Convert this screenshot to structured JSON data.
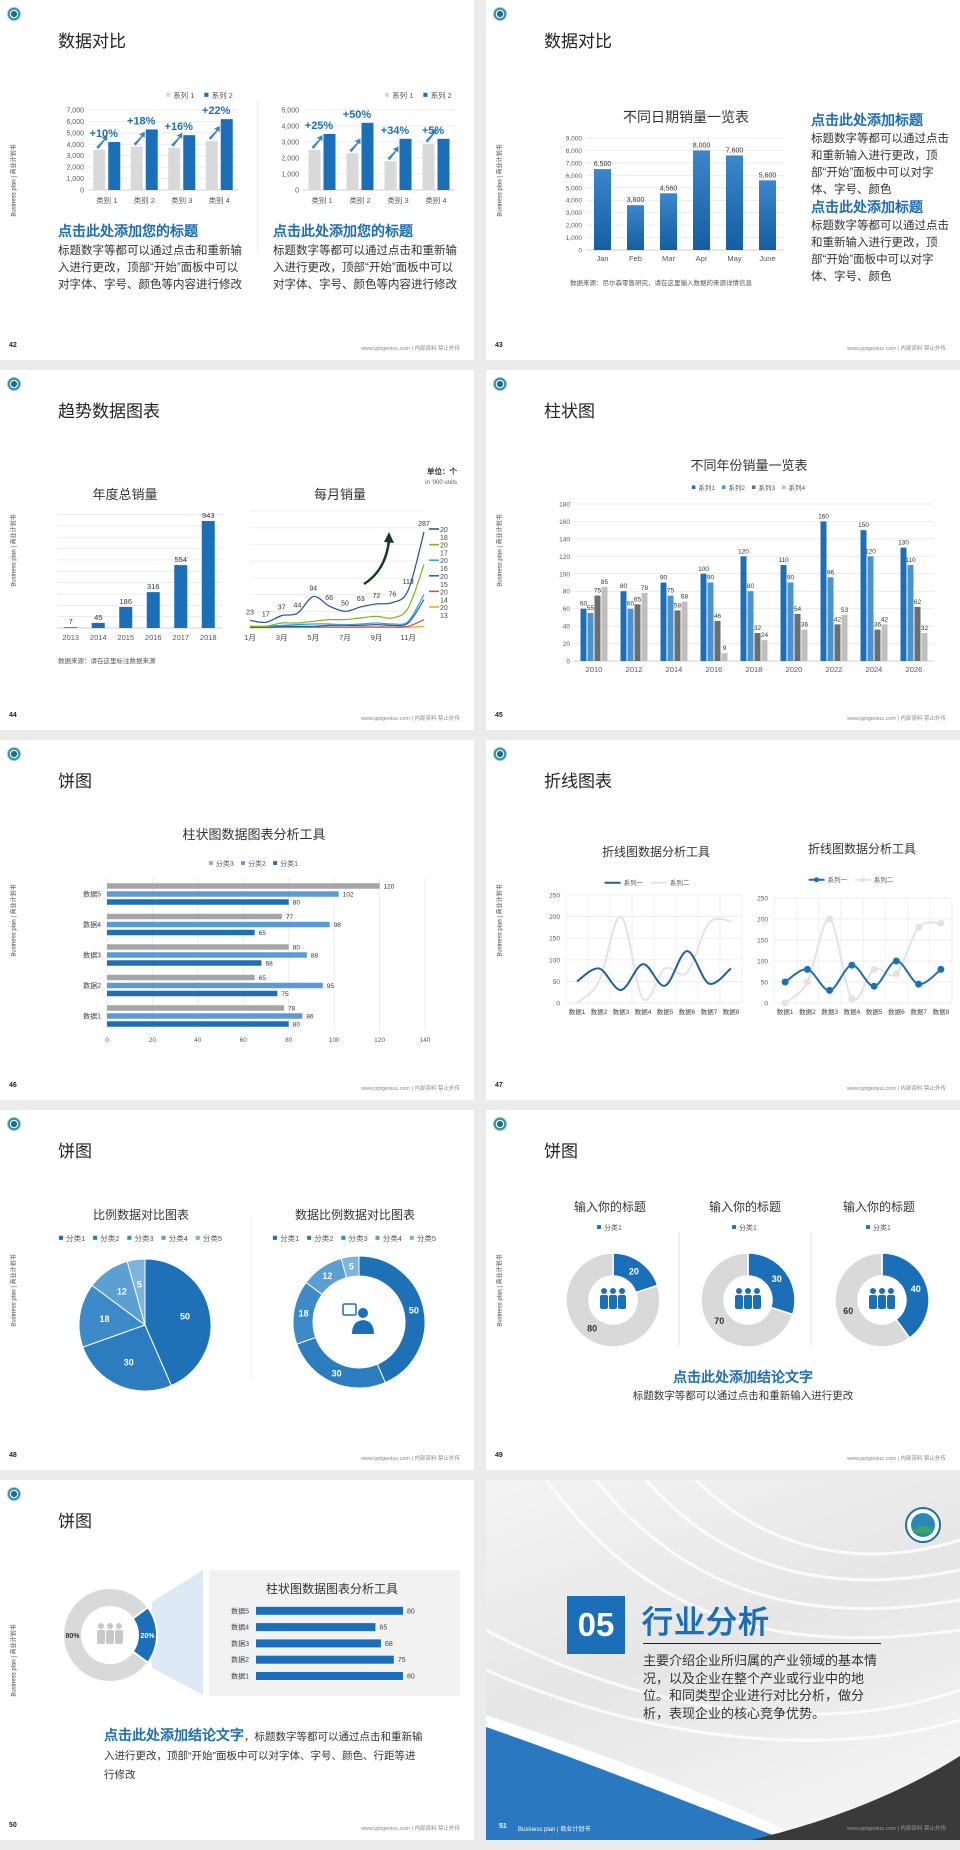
{
  "common": {
    "side_text": "Business plan | 商业计划书",
    "footer": "www.pptgenius.com | 内部资料 禁止外传"
  },
  "colors": {
    "brand_blue": "#1b6fb8",
    "heading_blue": "#1d6db5",
    "light_gray": "#d9d9d9",
    "page_bg": "#ebebeb"
  },
  "slides": {
    "s42": {
      "page": "42",
      "title": "数据对比",
      "blocks": [
        {
          "heading": "点击此处添加您的标题",
          "body": "标题数字等都可以通过点击和重新输入进行更改，顶部“开始”面板中可以对字体、字号、颜色等内容进行修改"
        },
        {
          "heading": "点击此处添加您的标题",
          "body": "标题数字等都可以通过点击和重新输入进行更改，顶部“开始”面板中可以对字体、字号、颜色等内容进行修改"
        }
      ]
    },
    "s43": {
      "page": "43",
      "title": "数据对比",
      "source": "数据来源：尼尔森零售研究，请在这里输入数据的来源详情信息",
      "blocks": [
        {
          "heading": "点击此处添加标题",
          "body": "标题数字等都可以通过点击和重新输入进行更改，顶部“开始”面板中可以对字体、字号、颜色"
        },
        {
          "heading": "点击此处添加标题",
          "body": "标题数字等都可以通过点击和重新输入进行更改，顶部“开始”面板中可以对字体、字号、颜色"
        }
      ]
    },
    "s44": {
      "page": "44",
      "title": "趋势数据图表",
      "source": "数据来源：请在这里标注数据来源",
      "unit": "单位：个",
      "unit_sub": "in '000 units"
    },
    "s45": {
      "page": "45",
      "title": "柱状图"
    },
    "s46": {
      "page": "46",
      "title": "饼图"
    },
    "s47": {
      "page": "47",
      "title": "折线图表"
    },
    "s48": {
      "page": "48",
      "title": "饼图"
    },
    "s49": {
      "page": "49",
      "title": "饼图",
      "conclusion_heading": "点击此处添加结论文字",
      "conclusion_body": "标题数字等都可以通过点击和重新输入进行更改"
    },
    "s50": {
      "page": "50",
      "title": "饼图",
      "conclusion_heading": "点击此处添加结论文字",
      "conclusion_body": "，标题数字等都可以通过点击和重新输入进行更改，顶部“开始”面板中可以对字体、字号、颜色、行距等进行修改"
    },
    "s51": {
      "page": "51",
      "number": "05",
      "title": "行业分析",
      "body": "主要介绍企业所归属的产业领域的基本情况，以及企业在整个产业或行业中的地位。和同类型企业进行对比分析，做分析，表现企业的核心竞争优势。"
    }
  },
  "chart_data": [
    {
      "id": "c42a",
      "type": "bar",
      "categories": [
        "类别 1",
        "类别 2",
        "类别 3",
        "类别 4"
      ],
      "series": [
        {
          "name": "系列 1",
          "values": [
            3500,
            3800,
            3700,
            4300
          ],
          "color": "#d9d9d9"
        },
        {
          "name": "系列 2",
          "values": [
            4200,
            5300,
            4800,
            6200
          ],
          "color": "#1b6fb8"
        }
      ],
      "ylim": [
        0,
        7000
      ],
      "ystep": 1000,
      "tick_format": "comma",
      "grid": true,
      "legend": "top-right",
      "annotations": [
        "+10%",
        "+18%",
        "+16%",
        "+22%"
      ]
    },
    {
      "id": "c42b",
      "type": "bar",
      "categories": [
        "类别 1",
        "类别 2",
        "类别 3",
        "类别 4"
      ],
      "series": [
        {
          "name": "系列 1",
          "values": [
            2500,
            2300,
            1800,
            2900
          ],
          "color": "#d9d9d9"
        },
        {
          "name": "系列 2",
          "values": [
            3500,
            4200,
            3200,
            3200
          ],
          "color": "#1b6fb8"
        }
      ],
      "ylim": [
        0,
        5000
      ],
      "ystep": 1000,
      "tick_format": "comma",
      "grid": true,
      "legend": "top-right",
      "annotations": [
        "+25%",
        "+50%",
        "+34%",
        "+5%"
      ]
    },
    {
      "id": "c43",
      "type": "bar",
      "title": "不同日期销量一览表",
      "categories": [
        "Jan",
        "Feb",
        "Mar",
        "Apr",
        "May",
        "June"
      ],
      "series": [
        {
          "values": [
            6500,
            3600,
            4560,
            8000,
            7600,
            5600
          ],
          "color": "#1b6fb8"
        }
      ],
      "ylim": [
        0,
        9000
      ],
      "ystep": 1000,
      "tick_format": "comma",
      "grid": true,
      "show_values": true
    },
    {
      "id": "c44a",
      "type": "bar",
      "title": "年度总销量",
      "categories": [
        "2013",
        "2014",
        "2015",
        "2016",
        "2017",
        "2018"
      ],
      "series": [
        {
          "values": [
            7,
            45,
            186,
            316,
            554,
            943
          ],
          "color": "#1b6fb8"
        }
      ],
      "ylim": [
        0,
        1000
      ],
      "ystep": 100,
      "grid": true,
      "show_values": true
    },
    {
      "id": "c44b",
      "type": "line",
      "title": "每月销量",
      "x_labels": [
        "1月",
        "3月",
        "5月",
        "7月",
        "9月",
        "11月"
      ],
      "ylim": [
        0,
        350
      ],
      "ystep": 50,
      "grid": true,
      "legend": "right",
      "series": [
        {
          "name": "2018",
          "color": "#1f4e9c",
          "show_values": true,
          "values": [
            23,
            17,
            37,
            44,
            94,
            66,
            50,
            63,
            72,
            76,
            113,
            287
          ]
        },
        {
          "name": "2017",
          "color": "#7ab317",
          "values": [
            5,
            5,
            15,
            15,
            20,
            25,
            25,
            30,
            35,
            30,
            60,
            190
          ]
        },
        {
          "name": "2016",
          "color": "#30a0d8",
          "values": [
            5,
            5,
            8,
            10,
            12,
            12,
            10,
            12,
            15,
            12,
            20,
            100
          ]
        },
        {
          "name": "2015",
          "color": "#1e5fa8",
          "values": [
            3,
            3,
            5,
            5,
            5,
            8,
            8,
            8,
            10,
            8,
            15,
            85
          ]
        },
        {
          "name": "2014",
          "color": "#c0504d",
          "values": [
            2,
            2,
            3,
            3,
            3,
            3,
            3,
            3,
            3,
            3,
            5,
            25
          ]
        },
        {
          "name": "2013",
          "color": "#f4a11d",
          "values": [
            1,
            1,
            2,
            2,
            2,
            2,
            2,
            2,
            2,
            2,
            2,
            5
          ]
        }
      ]
    },
    {
      "id": "c45",
      "type": "bar",
      "title": "不同年份销量一览表",
      "categories": [
        "2010",
        "2012",
        "2014",
        "2016",
        "2018",
        "2020",
        "2022",
        "2024",
        "2026"
      ],
      "series": [
        {
          "name": "系列1",
          "color": "#1b6fb8",
          "values": [
            60,
            80,
            90,
            100,
            120,
            110,
            160,
            150,
            130
          ]
        },
        {
          "name": "系列2",
          "color": "#4a92d0",
          "values": [
            55,
            60,
            75,
            90,
            80,
            90,
            96,
            120,
            110
          ]
        },
        {
          "name": "系列3",
          "color": "#6d6d6d",
          "values": [
            75,
            65,
            58,
            46,
            32,
            54,
            42,
            36,
            62
          ]
        },
        {
          "name": "系列4",
          "color": "#bfbfbf",
          "values": [
            85,
            78,
            68,
            9,
            24,
            36,
            53,
            42,
            32
          ]
        }
      ],
      "ylim": [
        0,
        180
      ],
      "ystep": 20,
      "grid": true,
      "show_values": true,
      "legend": "top"
    },
    {
      "id": "c46",
      "type": "hbar",
      "title": "柱状图数据图表分析工具",
      "categories": [
        "数据1",
        "数据2",
        "数据3",
        "数据4",
        "数据5"
      ],
      "series": [
        {
          "name": "分类1",
          "color": "#1f6fb5",
          "values": [
            80,
            75,
            68,
            65,
            80
          ]
        },
        {
          "name": "分类2",
          "color": "#5b9bd5",
          "values": [
            86,
            95,
            88,
            98,
            102
          ]
        },
        {
          "name": "分类3",
          "color": "#a5a5a5",
          "values": [
            78,
            65,
            80,
            77,
            120
          ]
        }
      ],
      "legend_order": [
        "分类3",
        "分类2",
        "分类1"
      ],
      "xlim": [
        0,
        140
      ],
      "xstep": 20,
      "grid": true,
      "show_values": true,
      "legend": "top"
    },
    {
      "id": "c47a",
      "type": "line",
      "title": "折线图数据分析工具",
      "categories": [
        "数据1",
        "数据2",
        "数据3",
        "数据4",
        "数据5",
        "数据6",
        "数据7",
        "数据8"
      ],
      "series": [
        {
          "name": "系列一",
          "color": "#1f5f9e",
          "values": [
            50,
            80,
            30,
            90,
            40,
            120,
            45,
            80
          ]
        },
        {
          "name": "系列二",
          "color": "#e3e3e3",
          "values": [
            0,
            50,
            200,
            10,
            80,
            70,
            185,
            190
          ]
        }
      ],
      "ylim": [
        0,
        250
      ],
      "ystep": 50,
      "grid": true,
      "smooth": true,
      "legend": "top"
    },
    {
      "id": "c47b",
      "type": "line",
      "title": "折线图数据分析工具",
      "categories": [
        "数据1",
        "数据2",
        "数据3",
        "数据4",
        "数据5",
        "数据6",
        "数据7",
        "数据8"
      ],
      "series": [
        {
          "name": "系列一",
          "color": "#1f6fb5",
          "values": [
            50,
            80,
            30,
            90,
            40,
            100,
            45,
            80
          ]
        },
        {
          "name": "系列二",
          "color": "#e3e3e3",
          "values": [
            0,
            50,
            200,
            10,
            80,
            70,
            180,
            190
          ]
        }
      ],
      "ylim": [
        0,
        250
      ],
      "ystep": 50,
      "grid": true,
      "smooth": true,
      "markers": true,
      "legend": "top"
    },
    {
      "id": "c48a",
      "type": "pie",
      "title": "比例数据对比图表",
      "categories": [
        "分类1",
        "分类2",
        "分类3",
        "分类4",
        "分类5"
      ],
      "values": [
        50,
        30,
        18,
        12,
        5
      ],
      "colors": [
        "#1e70b7",
        "#2b7dc0",
        "#3d8ac8",
        "#5b9fd3",
        "#7db4de"
      ],
      "legend": "top"
    },
    {
      "id": "c48b",
      "type": "donut",
      "title": "数据比例数据对比图表",
      "categories": [
        "分类1",
        "分类2",
        "分类3",
        "分类4",
        "分类5"
      ],
      "values": [
        50,
        30,
        18,
        12,
        5
      ],
      "colors": [
        "#1e70b7",
        "#2b7dc0",
        "#3d8ac8",
        "#5b9fd3",
        "#7db4de"
      ],
      "legend": "top"
    },
    {
      "id": "c49a",
      "type": "donut",
      "title": "输入你的标题",
      "legend_label": "分类1",
      "values": [
        20,
        80
      ],
      "colors": [
        "#1b6fb8",
        "#d9d9d9"
      ]
    },
    {
      "id": "c49b",
      "type": "donut",
      "title": "输入你的标题",
      "legend_label": "分类1",
      "values": [
        30,
        70
      ],
      "colors": [
        "#1b6fb8",
        "#d9d9d9"
      ]
    },
    {
      "id": "c49c",
      "type": "donut",
      "title": "输入你的标题",
      "legend_label": "分类1",
      "values": [
        40,
        60
      ],
      "colors": [
        "#1b6fb8",
        "#d9d9d9"
      ]
    },
    {
      "id": "c50a",
      "type": "donut",
      "values": [
        80,
        20
      ],
      "labels": [
        "80%",
        "20%"
      ],
      "colors": [
        "#d9d9d9",
        "#1b6fb8"
      ]
    },
    {
      "id": "c50b",
      "type": "hbar",
      "title": "柱状图数据图表分析工具",
      "categories": [
        "数据1",
        "数据2",
        "数据3",
        "数据4",
        "数据5"
      ],
      "series": [
        {
          "color": "#1b6fb8",
          "values": [
            80,
            75,
            68,
            65,
            80
          ]
        }
      ],
      "show_values": true
    }
  ]
}
